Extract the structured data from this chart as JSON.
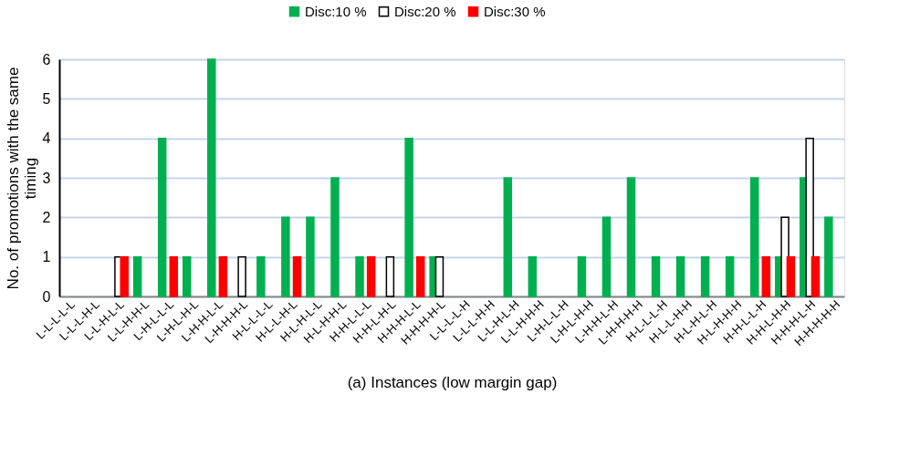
{
  "chart_data": {
    "type": "bar",
    "xlabel": "(a) Instances (low margin gap)",
    "ylabel": "No.  of promotions  with the same timing",
    "categories": [
      "L-L-L-L-L",
      "L-L-L-H-L",
      "L-L-H-L-L",
      "L-L-H-H-L",
      "L-H-L-L-L",
      "L-H-L-H-L",
      "L-H-H-L-L",
      "L-H-H-H-L",
      "H-L-L-L-L",
      "H-L-L-H-L",
      "H-L-H-L-L",
      "H-L-H-H-L",
      "H-H-L-L-L",
      "H-H-L-H-L",
      "H-H-H-L-L",
      "H-H-H-H-L",
      "L-L-L-L-H",
      "L-L-L-H-H",
      "L-L-H-L-H",
      "L-L-H-H-H",
      "L-H-L-L-H",
      "L-H-L-H-H",
      "L-H-H-L-H",
      "L-H-H-H-H",
      "H-L-L-L-H",
      "H-L-L-H-H",
      "H-L-H-L-H",
      "H-L-H-H-H",
      "H-H-L-L-H",
      "H-H-L-H-H",
      "H-H-H-L-H",
      "H-H-H-H-H"
    ],
    "series": [
      {
        "name": "Disc:10 %",
        "color": "#00b050",
        "values": [
          0,
          0,
          0,
          1,
          4,
          1,
          6,
          0,
          1,
          2,
          2,
          3,
          1,
          0,
          4,
          1,
          0,
          0,
          3,
          1,
          0,
          1,
          2,
          3,
          1,
          1,
          1,
          1,
          3,
          1,
          3,
          2
        ]
      },
      {
        "name": "Disc:20 %",
        "color": "#ffffff",
        "values": [
          0,
          0,
          1,
          0,
          0,
          0,
          0,
          1,
          0,
          0,
          0,
          0,
          0,
          1,
          0,
          1,
          0,
          0,
          0,
          0,
          0,
          0,
          0,
          0,
          0,
          0,
          0,
          0,
          0,
          2,
          4,
          0
        ]
      },
      {
        "name": "Disc:30 %",
        "color": "#ff0000",
        "values": [
          0,
          0,
          1,
          0,
          1,
          0,
          1,
          0,
          0,
          1,
          0,
          0,
          1,
          0,
          1,
          0,
          0,
          0,
          0,
          0,
          0,
          0,
          0,
          0,
          0,
          0,
          0,
          0,
          1,
          1,
          1,
          0
        ]
      }
    ],
    "ylim": [
      0,
      6
    ],
    "yticks": [
      0,
      1,
      2,
      3,
      4,
      5,
      6
    ],
    "grid": "y",
    "legend": "top"
  }
}
